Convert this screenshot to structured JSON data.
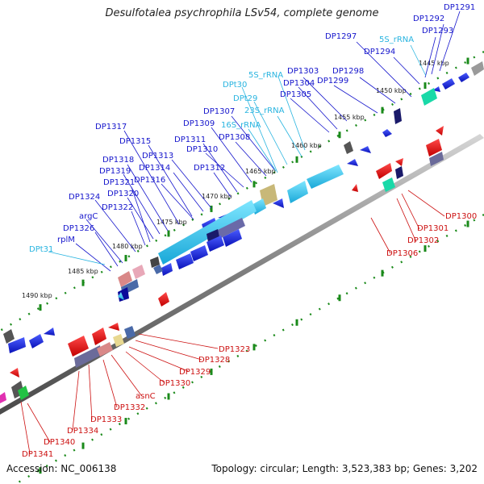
{
  "title": "Desulfotalea psychrophila LSv54, complete genome",
  "footer": {
    "accession": "Accession: NC_006138",
    "summary": "Topology: circular; Length: 3,523,383 bp; Genes: 3,202"
  },
  "colors": {
    "forward_cds": "#1010e0",
    "reverse_cds": "#e01010",
    "rna": "#30c8e8",
    "label_forward": "#1515cc",
    "label_reverse": "#cc1010",
    "label_rna": "#28b4e0",
    "tick": "#1a8a1a",
    "backbone": "#8a8a8a"
  },
  "scale": {
    "ticks": [
      {
        "label": "1445 kbp"
      },
      {
        "label": "1450 kbp"
      },
      {
        "label": "1455 kbp"
      },
      {
        "label": "1460 kbp"
      },
      {
        "label": "1465 kbp"
      },
      {
        "label": "1470 kbp"
      },
      {
        "label": "1475 kbp"
      },
      {
        "label": "1480 kbp"
      },
      {
        "label": "1485 kbp"
      },
      {
        "label": "1490 kbp"
      }
    ]
  },
  "labels": {
    "forward": [
      "DP1291",
      "DP1292",
      "DP1293",
      "DP1294",
      "DP1297",
      "DP1298",
      "DP1299",
      "DP1303",
      "DP1304",
      "DP1305",
      "DP1307",
      "DP1308",
      "DP1309",
      "DP1310",
      "DP1311",
      "DP1312",
      "DP1313",
      "DP1314",
      "DP1315",
      "DP1316",
      "DP1317",
      "DP1318",
      "DP1319",
      "DP1320",
      "DP1321",
      "DP1322",
      "DP1324",
      "argC",
      "DP1326",
      "rplM"
    ],
    "rna": [
      "5S_rRNA",
      "5S_rRNA",
      "DPt30",
      "DPt29",
      "23S_rRNA",
      "16S_rRNA",
      "DPt31"
    ],
    "reverse": [
      "DP1300",
      "DP1301",
      "DP1302",
      "DP1306",
      "DP1323",
      "DP1328",
      "DP1329",
      "DP1330",
      "asnC",
      "DP1332",
      "DP1333",
      "DP1334",
      "DP1340",
      "DP1341"
    ]
  }
}
